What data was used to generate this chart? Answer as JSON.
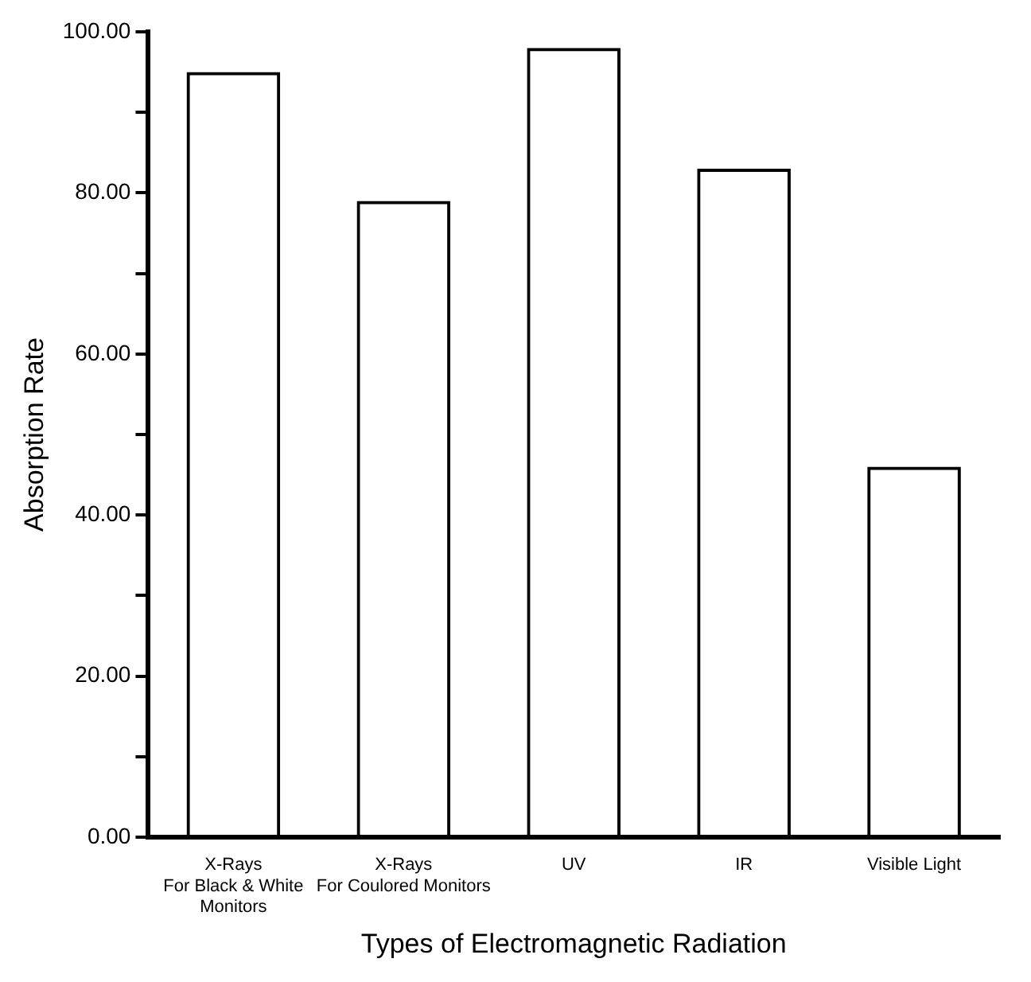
{
  "chart_data": {
    "type": "bar",
    "xlabel": "Types of Electromagnetic Radiation",
    "ylabel": "Absorption Rate",
    "categories": [
      "X-Rays\nFor Black & White\nMonitors",
      "X-Rays\nFor Coulored Monitors",
      "UV",
      "IR",
      "Visible Light"
    ],
    "values": [
      95,
      79,
      98,
      83,
      46
    ],
    "color": "#000000",
    "ylim": [
      0,
      100
    ],
    "yticks": [
      {
        "value": 0,
        "label": "0.00"
      },
      {
        "value": 10,
        "label": null
      },
      {
        "value": 20,
        "label": "20.00"
      },
      {
        "value": 30,
        "label": null
      },
      {
        "value": 40,
        "label": "40.00"
      },
      {
        "value": 50,
        "label": null
      },
      {
        "value": 60,
        "label": "60.00"
      },
      {
        "value": 70,
        "label": null
      },
      {
        "value": 80,
        "label": "80.00"
      },
      {
        "value": 90,
        "label": null
      },
      {
        "value": 100,
        "label": "100.00"
      }
    ],
    "grid": false
  }
}
